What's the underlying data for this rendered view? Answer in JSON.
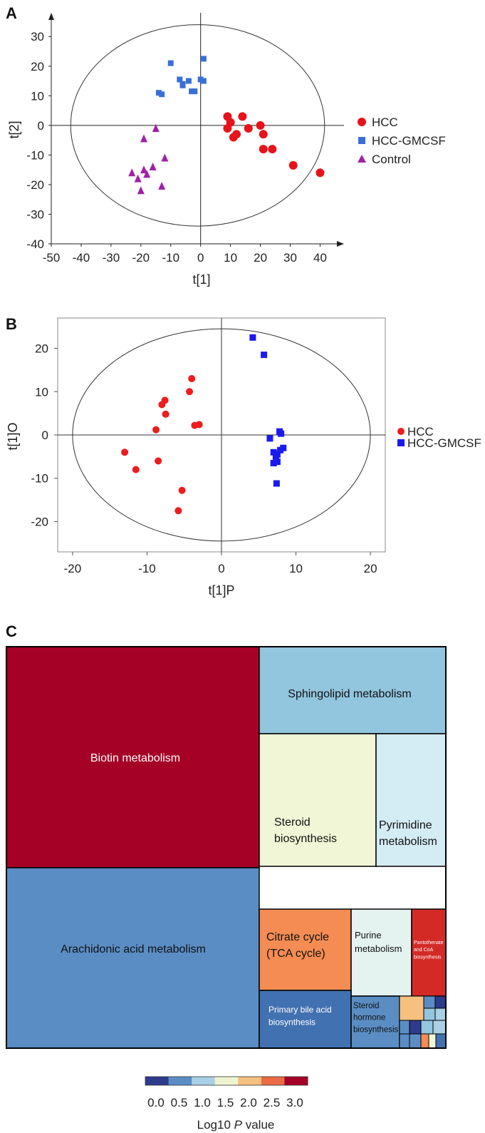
{
  "chart_data": [
    {
      "panel": "A",
      "type": "scatter",
      "xlabel": "t[1]",
      "ylabel": "t[2]",
      "xlim": [
        -50,
        48
      ],
      "ylim": [
        -40,
        38
      ],
      "xticks": [
        -50,
        -40,
        -30,
        -20,
        -10,
        0,
        10,
        20,
        30,
        40
      ],
      "yticks": [
        30,
        20,
        10,
        0,
        -10,
        -20,
        -30,
        -40
      ],
      "ellipse": {
        "cx": -1,
        "cy": 0,
        "rx": 42.5,
        "ry": 34
      },
      "legend_position": "right",
      "series": [
        {
          "name": "HCC",
          "marker": "circle",
          "color": "#e8121a",
          "points": [
            [
              9,
              3
            ],
            [
              10,
              1
            ],
            [
              14,
              3
            ],
            [
              20,
              0
            ],
            [
              9,
              -1
            ],
            [
              12,
              -3
            ],
            [
              16,
              -1
            ],
            [
              11,
              -4
            ],
            [
              21,
              -3
            ],
            [
              21,
              -8
            ],
            [
              24,
              -8
            ],
            [
              31,
              -13.5
            ],
            [
              40,
              -16
            ]
          ]
        },
        {
          "name": "HCC-GMCSF",
          "marker": "square",
          "color": "#3a6fd8",
          "points": [
            [
              -10,
              21
            ],
            [
              1,
              22.5
            ],
            [
              -7,
              15.5
            ],
            [
              0,
              15.5
            ],
            [
              1,
              15
            ],
            [
              -6,
              14
            ],
            [
              -4,
              15
            ],
            [
              -14,
              11
            ],
            [
              -13,
              10.5
            ],
            [
              -3,
              11.5
            ],
            [
              -2,
              11.5
            ],
            [
              -6,
              13.5
            ]
          ]
        },
        {
          "name": "Control",
          "marker": "triangle",
          "color": "#a020a8",
          "points": [
            [
              -15,
              -1
            ],
            [
              -19,
              -4.5
            ],
            [
              -12,
              -11
            ],
            [
              -16,
              -14
            ],
            [
              -19,
              -15
            ],
            [
              -18,
              -16.5
            ],
            [
              -23,
              -16
            ],
            [
              -21,
              -18
            ],
            [
              -13,
              -20.5
            ],
            [
              -20,
              -22
            ]
          ]
        }
      ]
    },
    {
      "panel": "B",
      "type": "scatter",
      "xlabel": "t[1]P",
      "ylabel": "t[1]O",
      "xlim": [
        -22,
        22
      ],
      "ylim": [
        -27,
        27
      ],
      "xticks": [
        -20,
        -10,
        0,
        10,
        20
      ],
      "yticks": [
        20,
        10,
        0,
        -10,
        -20
      ],
      "ellipse": {
        "cx": 0,
        "cy": 0,
        "rx": 20,
        "ry": 24.5
      },
      "legend_position": "right",
      "series": [
        {
          "name": "HCC",
          "marker": "circle",
          "color": "#ee1c1c",
          "points": [
            [
              -4,
              13
            ],
            [
              -4.3,
              10
            ],
            [
              -7.6,
              8
            ],
            [
              -8,
              7
            ],
            [
              -7.5,
              4.8
            ],
            [
              -3.6,
              2.2
            ],
            [
              -3,
              2.4
            ],
            [
              -8.8,
              1.2
            ],
            [
              -13,
              -4
            ],
            [
              -8.5,
              -6
            ],
            [
              -11.5,
              -8
            ],
            [
              -5.3,
              -12.8
            ],
            [
              -5.8,
              -17.5
            ]
          ]
        },
        {
          "name": "HCC-GMCSF",
          "marker": "square",
          "color": "#1a1aee",
          "points": [
            [
              4.2,
              22.5
            ],
            [
              5.7,
              18.5
            ],
            [
              7.8,
              0.8
            ],
            [
              8,
              0.3
            ],
            [
              6.5,
              -0.8
            ],
            [
              8.3,
              -3
            ],
            [
              7.9,
              -3.5
            ],
            [
              7,
              -4
            ],
            [
              7.5,
              -4.5
            ],
            [
              7.3,
              -5
            ],
            [
              7,
              -6.5
            ],
            [
              7.5,
              -6.2
            ],
            [
              7.4,
              -11.2
            ]
          ]
        }
      ]
    },
    {
      "panel": "C",
      "type": "treemap",
      "color_scale_label": "Log10 P value",
      "color_scale_ticks": [
        "0.0",
        "0.5",
        "1.0",
        "1.5",
        "2.0",
        "2.5",
        "3.0"
      ],
      "color_scale_colors": [
        "#2e3a8c",
        "#5a8dc4",
        "#a9d0e4",
        "#eef4d0",
        "#f6c07e",
        "#ea6b45",
        "#a50026"
      ],
      "pathways": [
        {
          "name": "Biotin metabolism",
          "log10p": 3.0,
          "color": "#a50026"
        },
        {
          "name": "Arachidonic acid metabolism",
          "log10p": 0.6,
          "color": "#5a8dc4"
        },
        {
          "name": "Sphingolipid metabolism",
          "log10p": 0.9,
          "color": "#92c5de"
        },
        {
          "name": "Steroid biosynthesis",
          "log10p": 1.6,
          "color": "#f0f6d6"
        },
        {
          "name": "Pyrimidine metabolism",
          "log10p": 1.2,
          "color": "#d4ecf4"
        },
        {
          "name": "Citrate cycle (TCA cycle)",
          "log10p": 2.3,
          "color": "#f48c53"
        },
        {
          "name": "Purine metabolism",
          "log10p": 1.4,
          "color": "#e4f2f0"
        },
        {
          "name": "Pantothenate and CoA biosynthesis",
          "log10p": 2.8,
          "color": "#d42a26"
        },
        {
          "name": "Primary bile acid biosynthesis",
          "log10p": 0.3,
          "color": "#4271b2"
        },
        {
          "name": "Steroid hormone biosynthesis",
          "log10p": 0.6,
          "color": "#5a8dc4"
        }
      ]
    }
  ],
  "panel_A": {
    "letter": "A",
    "xlabel": "t[1]",
    "ylabel": "t[2]",
    "legend": [
      {
        "label": "HCC"
      },
      {
        "label": "HCC-GMCSF"
      },
      {
        "label": "Control"
      }
    ]
  },
  "panel_B": {
    "letter": "B",
    "xlabel": "t[1]P",
    "ylabel": "t[1]O",
    "legend": [
      {
        "label": "HCC"
      },
      {
        "label": "HCC-GMCSF"
      }
    ]
  },
  "panel_C": {
    "letter": "C",
    "tiles": [
      {
        "lines": [
          "Biotin metabolism"
        ],
        "color": "#a50026",
        "text_color": "#ffffff"
      },
      {
        "lines": [
          "Arachidonic acid metabolism"
        ],
        "color": "#5a8dc4",
        "text_color": "#111111"
      },
      {
        "lines": [
          "Sphingolipid metabolism"
        ],
        "color": "#92c5de",
        "text_color": "#111111"
      },
      {
        "lines": [
          "Steroid",
          "biosynthesis"
        ],
        "color": "#f0f6d6",
        "text_color": "#111111"
      },
      {
        "lines": [
          "Pyrimidine",
          "metabolism"
        ],
        "color": "#d4ecf4",
        "text_color": "#111111"
      },
      {
        "lines": [
          "Citrate cycle",
          "(TCA cycle)"
        ],
        "color": "#f48c53",
        "text_color": "#111111"
      },
      {
        "lines": [
          "Purine",
          "metabolism"
        ],
        "color": "#e4f2f0",
        "text_color": "#111111"
      },
      {
        "lines": [
          "Pantothenate",
          "and CoA",
          "biosynthesis"
        ],
        "color": "#d42a26",
        "text_color": "#ffffff"
      },
      {
        "lines": [
          "Primary bile acid",
          "biosynthesis"
        ],
        "color": "#4271b2",
        "text_color": "#ffffff"
      },
      {
        "lines": [
          "Steroid",
          "hormone",
          "biosynthesis"
        ],
        "color": "#5a8dc4",
        "text_color": "#111111"
      }
    ],
    "small_tiles": [
      "#f6c07e",
      "#5a8dc4",
      "#2e3a8c",
      "#92c5de",
      "#a9d0e4",
      "#5a8dc4",
      "#2e3a8c",
      "#92c5de",
      "#a9d0e4",
      "#5a8dc4",
      "#5a8dc4",
      "#f48c53",
      "#f0f6d6",
      "#4271b2"
    ],
    "scale_ticks": [
      "0.0",
      "0.5",
      "1.0",
      "1.5",
      "2.0",
      "2.5",
      "3.0"
    ],
    "scale_label_prefix": "Log10 ",
    "scale_label_italic": "P",
    "scale_label_suffix": " value"
  }
}
